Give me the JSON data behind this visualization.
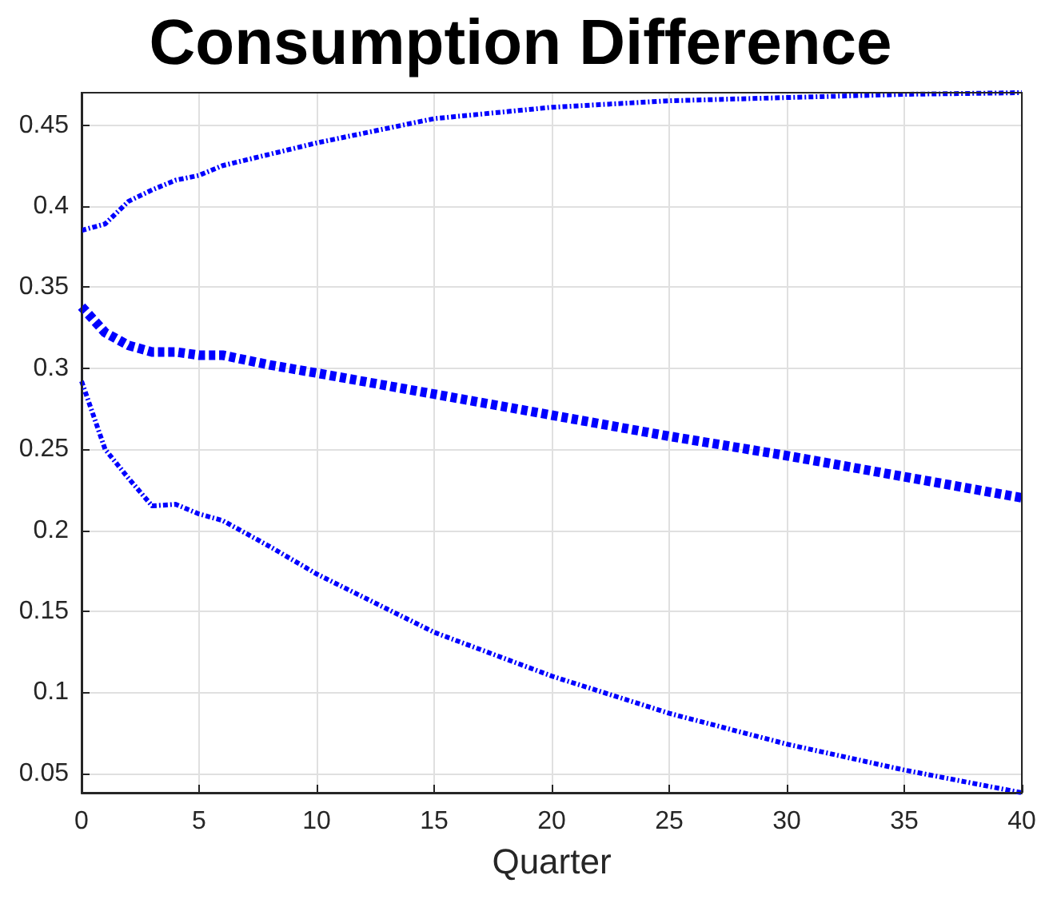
{
  "chart_data": {
    "type": "line",
    "title": "Consumption Difference",
    "xlabel": "Quarter",
    "x": [
      0,
      1,
      2,
      3,
      4,
      5,
      6,
      8,
      10,
      15,
      20,
      25,
      30,
      35,
      40
    ],
    "series": [
      {
        "color": "#0000ff",
        "line_style": "dashdot",
        "values": [
          0.385,
          0.389,
          0.403,
          0.41,
          0.416,
          0.419,
          0.425,
          0.432,
          0.439,
          0.454,
          0.461,
          0.465,
          0.467,
          0.469,
          0.47
        ]
      },
      {
        "color": "#0000ff",
        "line_style": "dashed",
        "values": [
          0.338,
          0.322,
          0.314,
          0.31,
          0.31,
          0.308,
          0.308,
          0.302,
          0.297,
          0.284,
          0.271,
          0.258,
          0.246,
          0.233,
          0.22
        ]
      },
      {
        "color": "#0000ff",
        "line_style": "dashdot",
        "values": [
          0.292,
          0.25,
          0.232,
          0.215,
          0.216,
          0.21,
          0.206,
          0.19,
          0.173,
          0.137,
          0.11,
          0.087,
          0.068,
          0.052,
          0.038
        ]
      }
    ],
    "xlim": [
      0,
      40
    ],
    "xticks": [
      0,
      5,
      10,
      15,
      20,
      25,
      30,
      35,
      40
    ],
    "ylim": [
      0.038,
      0.47
    ],
    "yticks": [
      0.05,
      0.1,
      0.15,
      0.2,
      0.25,
      0.3,
      0.35,
      0.4,
      0.45
    ],
    "grid": true,
    "marker": "none"
  }
}
